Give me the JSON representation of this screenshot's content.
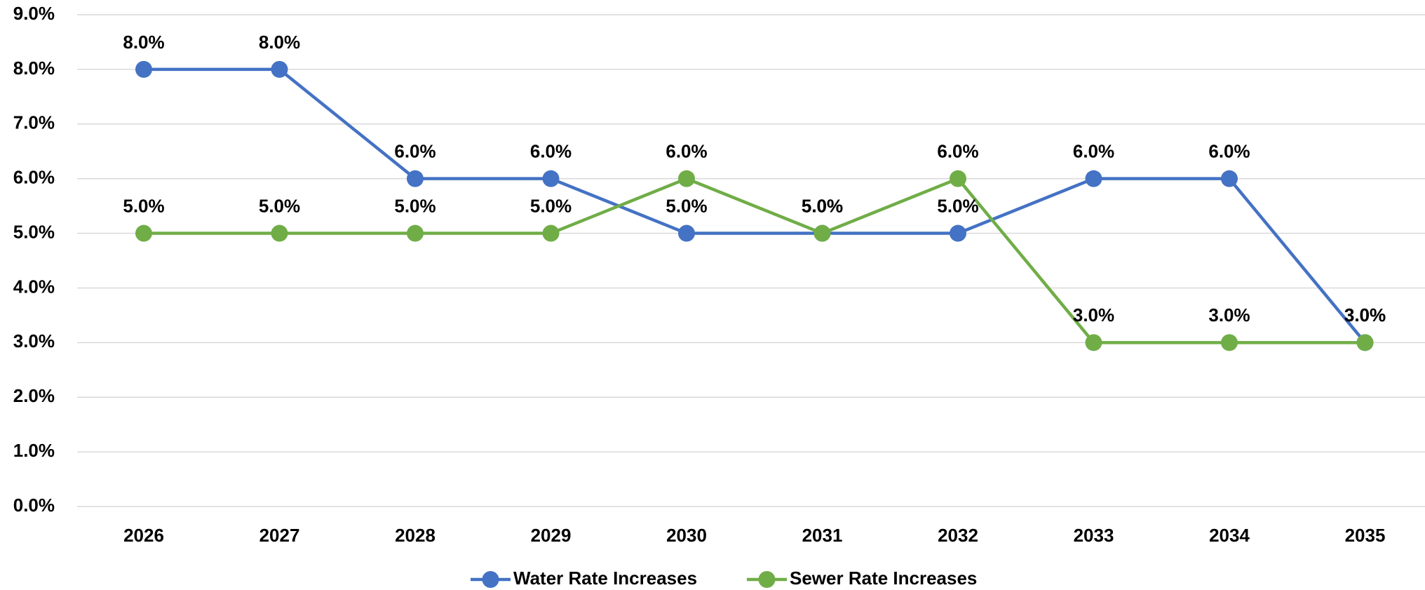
{
  "chart_data": {
    "type": "line",
    "categories": [
      "2026",
      "2027",
      "2028",
      "2029",
      "2030",
      "2031",
      "2032",
      "2033",
      "2034",
      "2035"
    ],
    "series": [
      {
        "name": "Water Rate Increases",
        "color": "#4472c4",
        "values": [
          8,
          8,
          6,
          6,
          5,
          5,
          5,
          6,
          6,
          3
        ],
        "value_labels": [
          "8.0%",
          "8.0%",
          "6.0%",
          "6.0%",
          "5.0%",
          "5.0%",
          "5.0%",
          "6.0%",
          "6.0%",
          "3.0%"
        ]
      },
      {
        "name": "Sewer Rate Increases",
        "color": "#70ad47",
        "values": [
          5,
          5,
          5,
          5,
          6,
          5,
          6,
          3,
          3,
          3
        ],
        "value_labels": [
          "5.0%",
          "5.0%",
          "5.0%",
          "5.0%",
          "6.0%",
          "5.0%",
          "6.0%",
          "3.0%",
          "3.0%",
          "3.0%"
        ]
      }
    ],
    "ylim": [
      0,
      9
    ],
    "yticks": [
      {
        "value": 0,
        "label": "0.0%"
      },
      {
        "value": 1,
        "label": "1.0%"
      },
      {
        "value": 2,
        "label": "2.0%"
      },
      {
        "value": 3,
        "label": "3.0%"
      },
      {
        "value": 4,
        "label": "4.0%"
      },
      {
        "value": 5,
        "label": "5.0%"
      },
      {
        "value": 6,
        "label": "6.0%"
      },
      {
        "value": 7,
        "label": "7.0%"
      },
      {
        "value": 8,
        "label": "8.0%"
      },
      {
        "value": 9,
        "label": "9.0%"
      }
    ],
    "grid": true,
    "legend": "bottom"
  }
}
